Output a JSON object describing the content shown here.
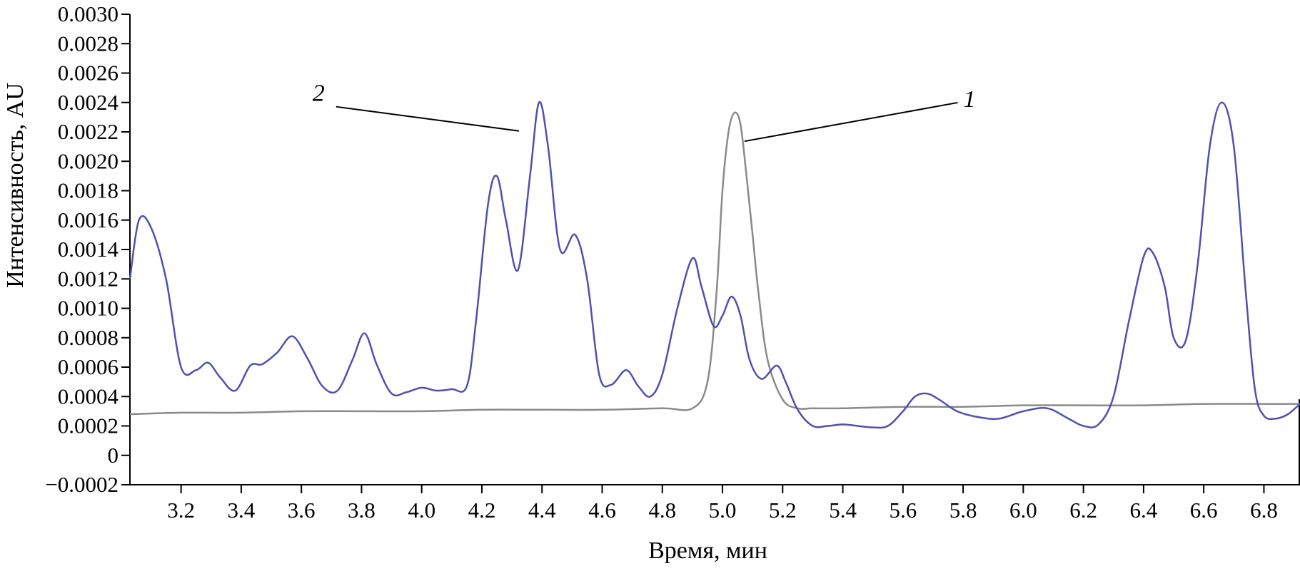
{
  "chart_data": {
    "type": "line",
    "title": "",
    "xlabel": "Время, мин",
    "ylabel": "Интенсивность, AU",
    "xlim": [
      3.03,
      6.92
    ],
    "ylim": [
      -0.0002,
      0.003
    ],
    "x_ticks": [
      "3.2",
      "3.4",
      "3.6",
      "3.8",
      "4.0",
      "4.2",
      "4.4",
      "4.6",
      "4.8",
      "5.0",
      "5.2",
      "5.4",
      "5.6",
      "5.8",
      "6.0",
      "6.2",
      "6.4",
      "6.6",
      "6.8"
    ],
    "y_ticks": [
      "−0.0002",
      "0",
      "0.0002",
      "0.0004",
      "0.0006",
      "0.0008",
      "0.0010",
      "0.0012",
      "0.0014",
      "0.0016",
      "0.0018",
      "0.0020",
      "0.0022",
      "0.0024",
      "0.0026",
      "0.0028",
      "0.0030"
    ],
    "grid": false,
    "legend": "none",
    "annotations": [
      {
        "text": "2",
        "series": "2"
      },
      {
        "text": "1",
        "series": "1"
      }
    ],
    "series": [
      {
        "name": "1",
        "color": "#8a8a8a",
        "x": [
          3.03,
          3.2,
          3.4,
          3.6,
          3.8,
          4.0,
          4.2,
          4.4,
          4.6,
          4.8,
          4.9,
          4.95,
          4.98,
          5.0,
          5.02,
          5.04,
          5.06,
          5.08,
          5.1,
          5.12,
          5.15,
          5.2,
          5.25,
          5.3,
          5.4,
          5.6,
          5.8,
          6.0,
          6.2,
          6.4,
          6.6,
          6.8,
          6.92
        ],
        "y": [
          0.00028,
          0.00029,
          0.00029,
          0.0003,
          0.0003,
          0.0003,
          0.00031,
          0.00031,
          0.00031,
          0.00032,
          0.00032,
          0.0005,
          0.0011,
          0.0018,
          0.0022,
          0.00233,
          0.00225,
          0.0019,
          0.0015,
          0.0011,
          0.00065,
          0.00038,
          0.00032,
          0.00032,
          0.00032,
          0.00033,
          0.00033,
          0.00034,
          0.00034,
          0.00034,
          0.00035,
          0.00035,
          0.00035
        ]
      },
      {
        "name": "2",
        "color": "#5050b0",
        "x": [
          3.03,
          3.06,
          3.1,
          3.15,
          3.2,
          3.25,
          3.29,
          3.33,
          3.38,
          3.43,
          3.47,
          3.52,
          3.57,
          3.62,
          3.67,
          3.72,
          3.77,
          3.81,
          3.85,
          3.9,
          3.95,
          4.0,
          4.05,
          4.1,
          4.15,
          4.18,
          4.22,
          4.25,
          4.28,
          4.32,
          4.36,
          4.39,
          4.42,
          4.46,
          4.51,
          4.55,
          4.59,
          4.63,
          4.68,
          4.72,
          4.76,
          4.8,
          4.85,
          4.9,
          4.93,
          4.97,
          5.0,
          5.03,
          5.06,
          5.09,
          5.13,
          5.18,
          5.21,
          5.25,
          5.3,
          5.35,
          5.4,
          5.45,
          5.5,
          5.55,
          5.6,
          5.64,
          5.68,
          5.72,
          5.78,
          5.85,
          5.92,
          6.0,
          6.08,
          6.15,
          6.2,
          6.25,
          6.3,
          6.35,
          6.4,
          6.43,
          6.47,
          6.5,
          6.54,
          6.58,
          6.62,
          6.66,
          6.7,
          6.74,
          6.77,
          6.8,
          6.84,
          6.88,
          6.92
        ],
        "y": [
          0.0012,
          0.0016,
          0.00155,
          0.0012,
          0.0006,
          0.00058,
          0.00063,
          0.00053,
          0.00044,
          0.00061,
          0.00062,
          0.0007,
          0.00081,
          0.00066,
          0.00047,
          0.00044,
          0.00065,
          0.00083,
          0.00062,
          0.00042,
          0.00043,
          0.00046,
          0.00044,
          0.00045,
          0.00047,
          0.0009,
          0.0017,
          0.0019,
          0.0016,
          0.00126,
          0.0019,
          0.0024,
          0.0021,
          0.0014,
          0.0015,
          0.0012,
          0.00055,
          0.00048,
          0.00058,
          0.00047,
          0.0004,
          0.00055,
          0.001,
          0.00134,
          0.00115,
          0.00088,
          0.00095,
          0.00108,
          0.00095,
          0.00065,
          0.00052,
          0.00061,
          0.0005,
          0.00031,
          0.0002,
          0.0002,
          0.00021,
          0.0002,
          0.00019,
          0.0002,
          0.0003,
          0.0004,
          0.00042,
          0.00038,
          0.0003,
          0.00026,
          0.00025,
          0.0003,
          0.00032,
          0.00025,
          0.0002,
          0.00021,
          0.0004,
          0.0009,
          0.00135,
          0.00138,
          0.00115,
          0.0008,
          0.00078,
          0.0013,
          0.0021,
          0.0024,
          0.0021,
          0.0011,
          0.00045,
          0.00027,
          0.00025,
          0.00028,
          0.00035
        ]
      }
    ]
  }
}
